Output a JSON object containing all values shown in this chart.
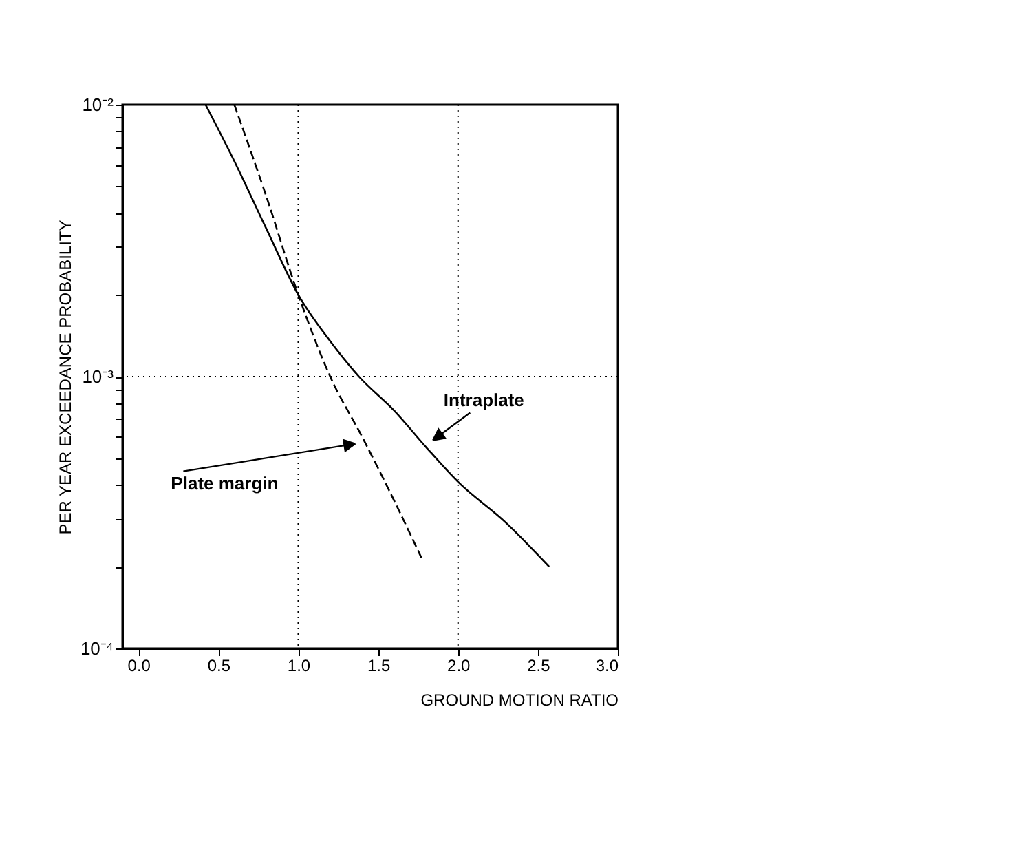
{
  "chart_data": {
    "type": "line",
    "xlabel": "GROUND MOTION RATIO",
    "ylabel": "PER YEAR EXCEEDANCE PROBABILITY",
    "log": "y",
    "xlim": [
      -0.1,
      3.0
    ],
    "ylim": [
      0.0001,
      0.01
    ],
    "xticks": [
      {
        "value": 0,
        "label": "0.0"
      },
      0.5,
      {
        "value": 1,
        "label": "1.0"
      },
      1.5,
      {
        "value": 2,
        "label": "2.0"
      },
      2.5,
      {
        "value": 3,
        "label": "3.0"
      }
    ],
    "yticks": [
      {
        "value": 0.0001,
        "label": "10⁻⁴"
      },
      {
        "value": 0.0002,
        "label": null
      },
      {
        "value": 0.0003,
        "label": null
      },
      {
        "value": 0.0004,
        "label": null
      },
      {
        "value": 0.0005,
        "label": null
      },
      {
        "value": 0.0006,
        "label": null
      },
      {
        "value": 0.0007,
        "label": null
      },
      {
        "value": 0.0008,
        "label": null
      },
      {
        "value": 0.0009,
        "label": null
      },
      {
        "value": 0.001,
        "label": "10⁻³"
      },
      {
        "value": 0.002,
        "label": null
      },
      {
        "value": 0.003,
        "label": null
      },
      {
        "value": 0.004,
        "label": null
      },
      {
        "value": 0.005,
        "label": null
      },
      {
        "value": 0.006,
        "label": null
      },
      {
        "value": 0.007,
        "label": null
      },
      {
        "value": 0.008,
        "label": null
      },
      {
        "value": 0.009,
        "label": null
      },
      {
        "value": 0.01,
        "label": "10⁻²"
      }
    ],
    "grid": false,
    "series": [
      {
        "name": "Intraplate",
        "color": "#000000",
        "line_style": "solid",
        "x": [
          0.42,
          0.6,
          0.8,
          1.0,
          1.2,
          1.38,
          1.6,
          1.8,
          2.0,
          2.3,
          2.57
        ],
        "values": [
          0.01,
          0.0062,
          0.0035,
          0.002,
          0.00135,
          0.001,
          0.00075,
          0.00055,
          0.00041,
          0.00029,
          0.0002
        ]
      },
      {
        "name": "Plate margin",
        "color": "#000000",
        "line_style": "dashed",
        "x": [
          0.6,
          0.8,
          1.0,
          1.2,
          1.4,
          1.6,
          1.78
        ],
        "values": [
          0.01,
          0.0046,
          0.002,
          0.001,
          0.0006,
          0.00035,
          0.00021
        ]
      }
    ],
    "ref_lines": [
      {
        "axis": "x",
        "value": 1,
        "line_style": "dotted",
        "color": "#000000"
      },
      {
        "axis": "x",
        "value": 2,
        "line_style": "dotted",
        "color": "#000000"
      },
      {
        "axis": "y",
        "value": 0.001,
        "line_style": "dotted",
        "color": "#000000"
      }
    ]
  }
}
